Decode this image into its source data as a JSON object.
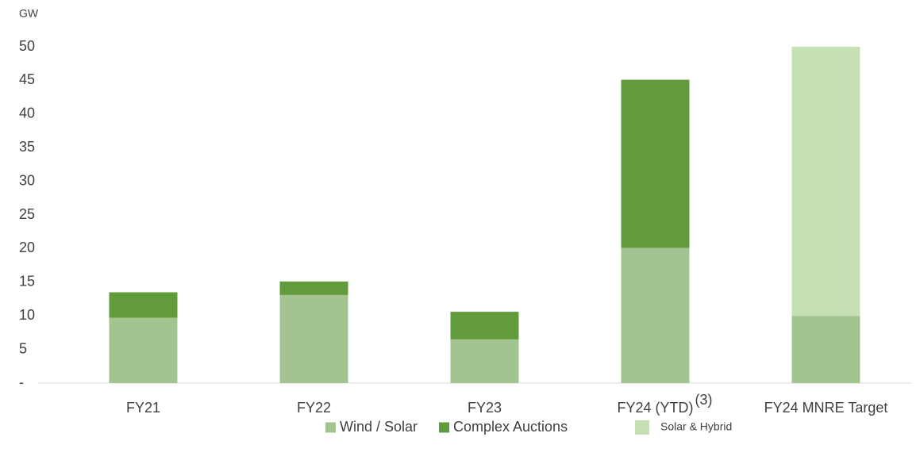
{
  "chart_data": {
    "type": "stacked_bar",
    "y_label": "GW",
    "categories": [
      "FY21",
      "FY22",
      "FY23",
      "FY24 (YTD)",
      "FY24 MNRE Target"
    ],
    "annotation": "(3)",
    "series": [
      {
        "name": "Wind / Solar",
        "color": "#a2c490",
        "values": [
          9.7,
          13.1,
          6.5,
          20.1,
          10
        ]
      },
      {
        "name": "Complex Auctions",
        "color": "#629b3c",
        "values": [
          3.8,
          2.0,
          4.1,
          25.0,
          null
        ]
      },
      {
        "name": "Solar & Hybrid",
        "color": "#c5e0b4",
        "values": [
          null,
          null,
          null,
          null,
          40
        ]
      }
    ],
    "ylim": [
      0,
      50
    ],
    "yticks": [
      {
        "value": 0,
        "label": "-"
      },
      5,
      10,
      15,
      20,
      25,
      30,
      35,
      40,
      45,
      50
    ],
    "legend": "bottom"
  }
}
